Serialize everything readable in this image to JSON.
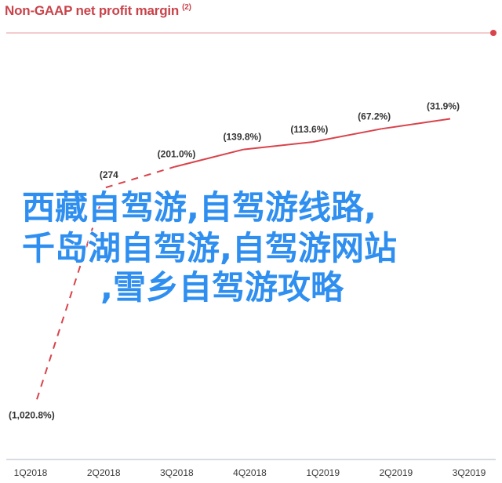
{
  "chart_data": {
    "type": "line",
    "title": "Non-GAAP net profit margin",
    "title_note": "(2)",
    "categories": [
      "1Q2018",
      "2Q2018",
      "3Q2018",
      "4Q2018",
      "1Q2019",
      "2Q2019",
      "3Q2019"
    ],
    "series": [
      {
        "values": [
          -1020.8,
          -274.0,
          -201.0,
          -139.8,
          -113.6,
          -67.2,
          -31.9
        ],
        "labels": [
          "(1,020.8%)",
          "(274",
          "(201.0%)",
          "(139.8%)",
          "(113.6%)",
          "(67.2%)",
          "(31.9%)"
        ],
        "dashed_segments": [
          0,
          1
        ],
        "color": "#d9434b"
      }
    ],
    "xlabel": "",
    "ylabel": "",
    "ylim": [
      -1100,
      0
    ],
    "grid": false
  },
  "overlay_text": [
    "西藏自驾游,自驾游线路,",
    "千岛湖自驾游,自驾游网站",
    ",雪乡自驾游攻略"
  ],
  "colors": {
    "title": "#c9434a",
    "line": "#d9434b",
    "overlay": "#2f8ff0",
    "axis": "#b0b8c4",
    "label": "#333333"
  }
}
